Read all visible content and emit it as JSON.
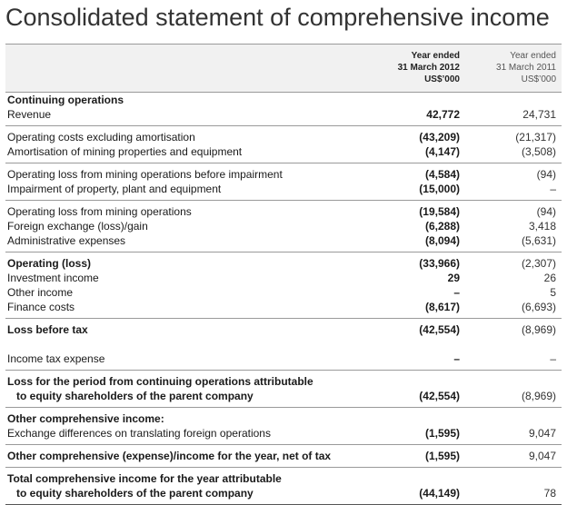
{
  "title": "Consolidated statement of comprehensive income",
  "columns": {
    "current": [
      "Year ended",
      "31 March 2012",
      "US$’000"
    ],
    "prior": [
      "Year ended",
      "31 March 2011",
      "US$’000"
    ]
  },
  "groups": [
    [
      {
        "label": "Continuing operations",
        "bold": true,
        "v1": "",
        "v2": ""
      },
      {
        "label": "Revenue",
        "bold": false,
        "v1": "42,772",
        "v2": "24,731"
      }
    ],
    [
      {
        "label": "Operating costs excluding amortisation",
        "bold": false,
        "v1": "(43,209)",
        "v2": "(21,317)"
      },
      {
        "label": "Amortisation of mining properties and equipment",
        "bold": false,
        "v1": "(4,147)",
        "v2": "(3,508)"
      }
    ],
    [
      {
        "label": "Operating loss from mining operations before impairment",
        "bold": false,
        "v1": "(4,584)",
        "v2": "(94)"
      },
      {
        "label": "Impairment of property, plant and equipment",
        "bold": false,
        "v1": "(15,000)",
        "v2": "–"
      }
    ],
    [
      {
        "label": "Operating loss from mining operations",
        "bold": false,
        "v1": "(19,584)",
        "v2": "(94)"
      },
      {
        "label": "Foreign exchange (loss)/gain",
        "bold": false,
        "v1": "(6,288)",
        "v2": "3,418"
      },
      {
        "label": "Administrative expenses",
        "bold": false,
        "v1": "(8,094)",
        "v2": "(5,631)"
      }
    ],
    [
      {
        "label": "Operating (loss)",
        "bold": true,
        "v1": "(33,966)",
        "v2": "(2,307)"
      },
      {
        "label": "Investment income",
        "bold": false,
        "v1": "29",
        "v2": "26"
      },
      {
        "label": "Other income",
        "bold": false,
        "v1": "–",
        "v2": "5"
      },
      {
        "label": "Finance costs",
        "bold": false,
        "v1": "(8,617)",
        "v2": "(6,693)"
      }
    ],
    [
      {
        "label": "Loss before tax",
        "bold": true,
        "v1": "(42,554)",
        "v2": "(8,969)"
      },
      {
        "label": "",
        "bold": false,
        "v1": "",
        "v2": ""
      },
      {
        "label": "Income tax expense",
        "bold": false,
        "v1": "–",
        "v2": "–"
      }
    ],
    [
      {
        "label": "Loss for the period from continuing operations attributable",
        "bold": true,
        "v1": "",
        "v2": ""
      },
      {
        "label": "to equity shareholders of the parent company",
        "bold": true,
        "indent": true,
        "v1": "(42,554)",
        "v2": "(8,969)"
      }
    ],
    [
      {
        "label": "Other comprehensive income:",
        "bold": true,
        "v1": "",
        "v2": ""
      },
      {
        "label": "Exchange differences on translating foreign operations",
        "bold": false,
        "v1": "(1,595)",
        "v2": "9,047"
      }
    ],
    [
      {
        "label": "Other comprehensive (expense)/income for the year, net of tax",
        "bold": true,
        "v1": "(1,595)",
        "v2": "9,047"
      }
    ],
    [
      {
        "label": "Total comprehensive income for the year attributable",
        "bold": true,
        "v1": "",
        "v2": ""
      },
      {
        "label": "to equity shareholders of the parent company",
        "bold": true,
        "indent": true,
        "v1": "(44,149)",
        "v2": "78"
      }
    ]
  ]
}
